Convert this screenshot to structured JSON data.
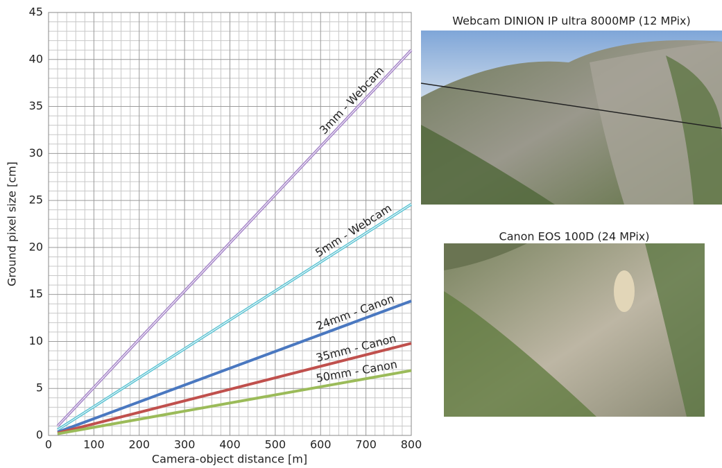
{
  "chart_data": {
    "type": "line",
    "x_label": "Camera-object distance [m]",
    "y_label": "Ground pixel size [cm]",
    "x": [
      20,
      800
    ],
    "series": [
      {
        "name": "3mm - Webcam",
        "color": "#a585c8",
        "values": [
          1.0,
          41
        ]
      },
      {
        "name": "5mm - Webcam",
        "color": "#5cc3d3",
        "values": [
          0.6,
          24.6
        ]
      },
      {
        "name": "24mm - Canon",
        "color": "#4a78c0",
        "values": [
          0.35,
          14.3
        ]
      },
      {
        "name": "35mm - Canon",
        "color": "#c0504d",
        "values": [
          0.25,
          9.8
        ]
      },
      {
        "name": "50mm - Canon",
        "color": "#9bbb59",
        "values": [
          0.17,
          6.9
        ]
      }
    ],
    "xlim": [
      0,
      800
    ],
    "xticks": [
      0,
      100,
      200,
      300,
      400,
      500,
      600,
      700,
      800
    ],
    "ylim": [
      0,
      45
    ],
    "yticks": [
      0,
      5,
      10,
      15,
      20,
      25,
      30,
      35,
      40,
      45
    ],
    "grid": true
  },
  "images": [
    {
      "title": "Webcam DINION IP ultra 8000MP (12 MPix)"
    },
    {
      "title": "Canon EOS 100D (24 MPix)"
    }
  ]
}
